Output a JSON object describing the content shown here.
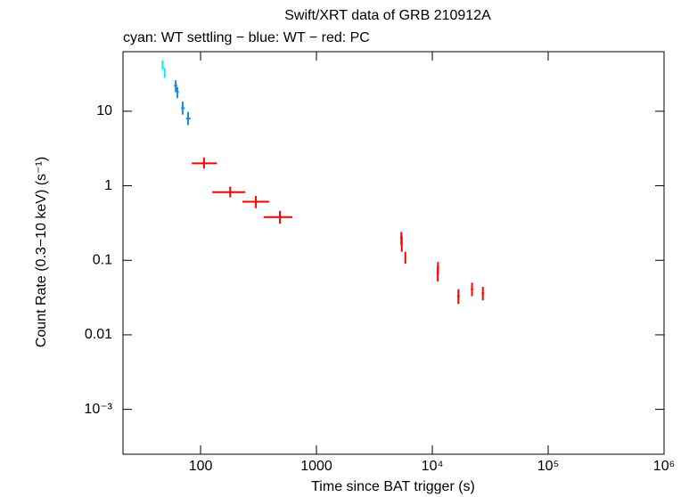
{
  "chart_data": {
    "type": "scatter",
    "title": "Swift/XRT data of GRB 210912A",
    "subtitle": "cyan: WT settling − blue: WT − red: PC",
    "x_label": "Time since BAT trigger (s)",
    "y_label": "Count Rate (0.3−10 keV) (s⁻¹)",
    "xscale": "log",
    "yscale": "log",
    "xlim": [
      21.4,
      1000000
    ],
    "ylim": [
      0.00025,
      63
    ],
    "xticks": [
      100,
      1000,
      {
        "value": 10000,
        "label": "10⁴"
      },
      {
        "value": 100000,
        "label": "10⁵"
      },
      {
        "value": 1000000,
        "label": "10⁶"
      }
    ],
    "yticks": [
      {
        "value": 0.001,
        "label": "10⁻³"
      },
      0.01,
      0.1,
      1,
      10
    ],
    "series": [
      {
        "color": "#00f0f0",
        "x": [
          47,
          49
        ],
        "x_low": [
          46.5,
          48.5
        ],
        "x_high": [
          47.5,
          49.5
        ],
        "values": [
          42,
          33
        ],
        "y_low": [
          36,
          28
        ],
        "y_high": [
          48,
          38
        ]
      },
      {
        "color": "#1e88e5",
        "x": [
          61,
          63,
          70,
          78
        ],
        "x_low": [
          59,
          62,
          68,
          75
        ],
        "x_high": [
          63,
          65,
          73,
          82
        ],
        "values": [
          22,
          18,
          11,
          8
        ],
        "y_low": [
          18,
          15,
          9,
          6.5
        ],
        "y_high": [
          26,
          21,
          13.5,
          9.8
        ]
      },
      {
        "color": "#ff0000",
        "x": [
          107,
          180,
          300,
          484,
          5400,
          5450,
          5850,
          11200,
          11150,
          16800,
          22000,
          27300
        ],
        "x_low": [
          84,
          126,
          230,
          350,
          5300,
          5380,
          5780,
          11000,
          10950,
          16400,
          21500,
          26700
        ],
        "x_high": [
          138,
          242,
          390,
          620,
          5500,
          5520,
          5920,
          11400,
          11350,
          17200,
          22500,
          27900
        ],
        "values": [
          2.0,
          0.82,
          0.61,
          0.38,
          0.2,
          0.17,
          0.11,
          0.08,
          0.068,
          0.033,
          0.041,
          0.036
        ],
        "y_low": [
          1.7,
          0.7,
          0.5,
          0.31,
          0.16,
          0.13,
          0.09,
          0.065,
          0.052,
          0.026,
          0.033,
          0.029
        ],
        "y_high": [
          2.4,
          0.97,
          0.73,
          0.46,
          0.24,
          0.21,
          0.13,
          0.095,
          0.085,
          0.041,
          0.05,
          0.044
        ]
      }
    ]
  }
}
